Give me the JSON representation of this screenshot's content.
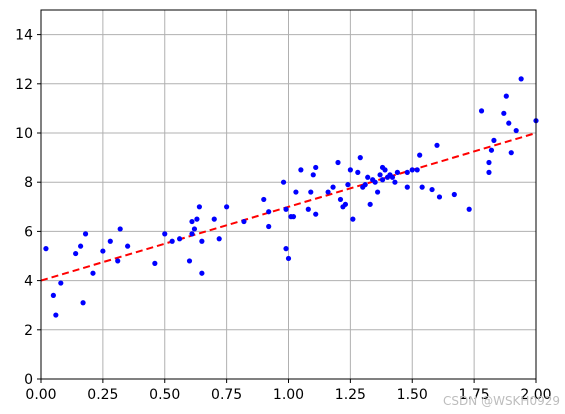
{
  "chart_data": {
    "type": "scatter",
    "title": "",
    "xlabel": "",
    "ylabel": "",
    "xlim": [
      0,
      2
    ],
    "ylim": [
      0,
      15
    ],
    "grid": true,
    "x_ticks": [
      "0.00",
      "0.25",
      "0.50",
      "0.75",
      "1.00",
      "1.25",
      "1.50",
      "1.75",
      "2.00"
    ],
    "y_ticks": [
      "0",
      "2",
      "4",
      "6",
      "8",
      "10",
      "12",
      "14"
    ],
    "x_tick_values": [
      0,
      0.25,
      0.5,
      0.75,
      1.0,
      1.25,
      1.5,
      1.75,
      2.0
    ],
    "y_tick_values": [
      0,
      2,
      4,
      6,
      8,
      10,
      12,
      14
    ],
    "points_color": "#0000ff",
    "line_color": "#ff0000",
    "series": [
      {
        "kind": "points",
        "x": [
          0.02,
          0.05,
          0.06,
          0.08,
          0.14,
          0.16,
          0.17,
          0.18,
          0.21,
          0.25,
          0.28,
          0.31,
          0.32,
          0.35,
          0.46,
          0.5,
          0.53,
          0.56,
          0.6,
          0.61,
          0.61,
          0.62,
          0.63,
          0.64,
          0.65,
          0.65,
          0.7,
          0.72,
          0.75,
          0.82,
          0.9,
          0.92,
          0.92,
          0.98,
          0.99,
          0.99,
          1.0,
          1.01,
          1.02,
          1.03,
          1.05,
          1.08,
          1.09,
          1.1,
          1.11,
          1.11,
          1.16,
          1.18,
          1.2,
          1.21,
          1.22,
          1.23,
          1.24,
          1.25,
          1.26,
          1.28,
          1.29,
          1.3,
          1.31,
          1.32,
          1.33,
          1.34,
          1.35,
          1.36,
          1.37,
          1.38,
          1.38,
          1.39,
          1.4,
          1.41,
          1.42,
          1.43,
          1.44,
          1.48,
          1.48,
          1.5,
          1.52,
          1.53,
          1.54,
          1.58,
          1.6,
          1.61,
          1.67,
          1.73,
          1.78,
          1.81,
          1.81,
          1.82,
          1.83,
          1.87,
          1.88,
          1.89,
          1.9,
          1.92,
          1.94,
          2.0
        ],
        "y": [
          5.3,
          3.4,
          2.6,
          3.9,
          5.1,
          5.4,
          3.1,
          5.9,
          4.3,
          5.2,
          5.6,
          4.8,
          6.1,
          5.4,
          4.7,
          5.9,
          5.6,
          5.7,
          4.8,
          6.4,
          5.9,
          6.1,
          6.5,
          7.0,
          5.6,
          4.3,
          6.5,
          5.7,
          7.0,
          6.4,
          7.3,
          6.2,
          6.8,
          8.0,
          5.3,
          6.9,
          4.9,
          6.6,
          6.6,
          7.6,
          8.5,
          6.9,
          7.6,
          8.3,
          6.7,
          8.6,
          7.6,
          7.8,
          8.8,
          7.3,
          7.0,
          7.1,
          7.9,
          8.5,
          6.5,
          8.4,
          9.0,
          7.8,
          7.9,
          8.2,
          7.1,
          8.1,
          8.0,
          7.6,
          8.3,
          8.6,
          8.1,
          8.5,
          8.2,
          8.3,
          8.2,
          8.0,
          8.4,
          7.8,
          8.4,
          8.5,
          8.5,
          9.1,
          7.8,
          7.7,
          9.5,
          7.4,
          7.5,
          6.9,
          10.9,
          8.4,
          8.8,
          9.3,
          9.7,
          10.8,
          11.5,
          10.4,
          9.2,
          10.1,
          12.2,
          10.5
        ]
      },
      {
        "kind": "line",
        "x": [
          0,
          2
        ],
        "y": [
          4.0,
          10.0
        ]
      }
    ]
  },
  "watermark": "CSDN @WSKH0929"
}
